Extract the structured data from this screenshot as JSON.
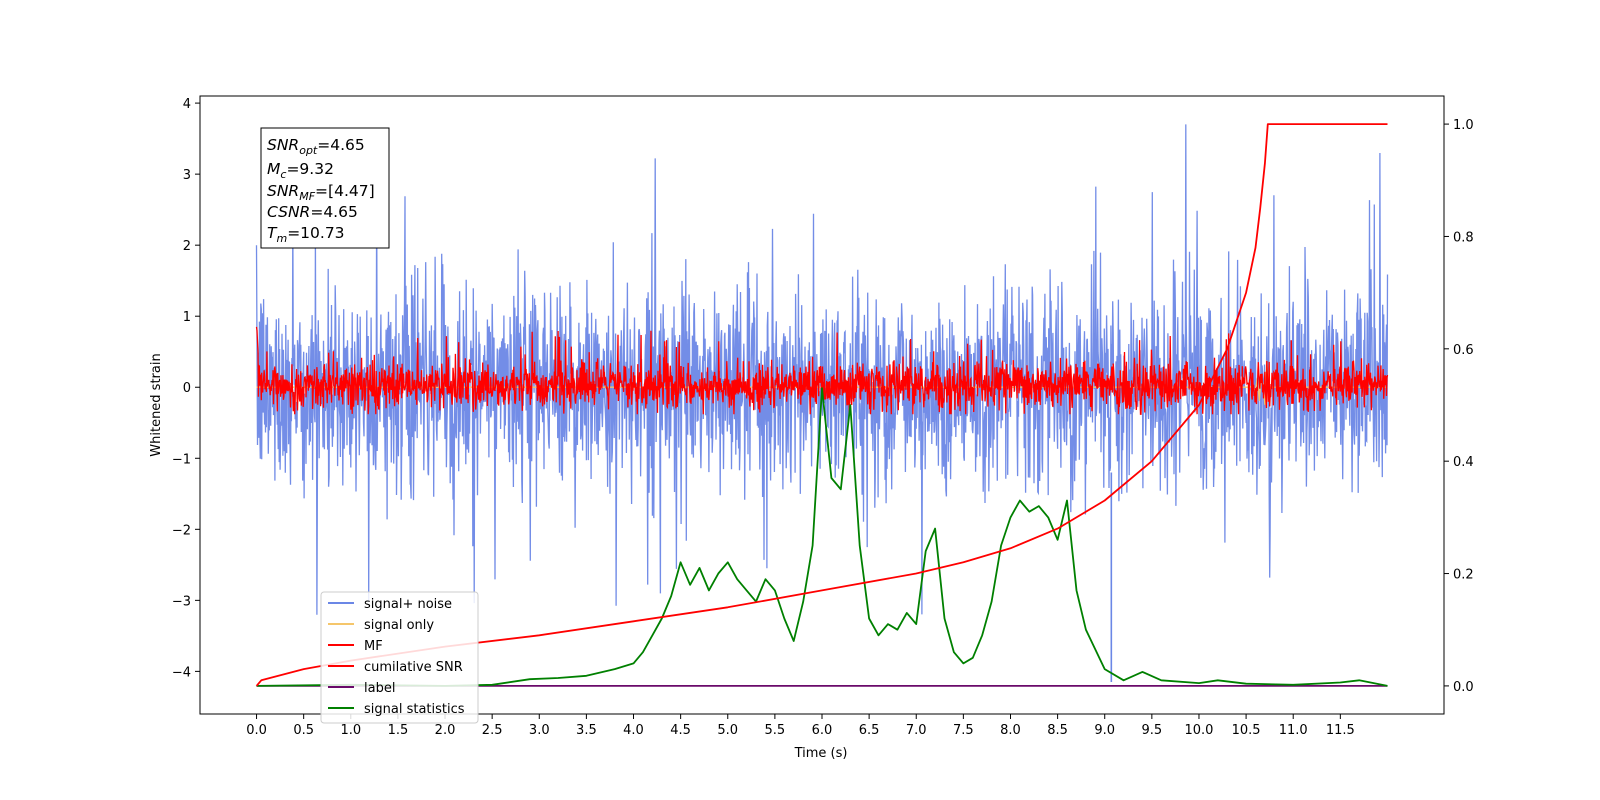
{
  "chart_data": {
    "type": "line",
    "xlabel": "Time (s)",
    "ylabel": "Whitened strain",
    "xlim": [
      -0.6,
      12.6
    ],
    "ylim": [
      -4.6,
      4.1
    ],
    "y2lim": [
      -0.05,
      1.05
    ],
    "x_ticks": [
      "0.0",
      "0.5",
      "1.0",
      "1.5",
      "2.0",
      "2.5",
      "3.0",
      "3.5",
      "4.0",
      "4.5",
      "5.0",
      "5.5",
      "6.0",
      "6.5",
      "7.0",
      "7.5",
      "8.0",
      "8.5",
      "9.0",
      "9.5",
      "10.0",
      "10.5",
      "11.0",
      "11.5"
    ],
    "y_ticks": [
      "4",
      "3",
      "2",
      "1",
      "0",
      "−1",
      "−2",
      "−3",
      "−4"
    ],
    "y2_ticks": [
      "0.0",
      "0.2",
      "0.4",
      "0.6",
      "0.8",
      "1.0"
    ],
    "grid": false,
    "legend_position": "lower-left",
    "annotation": {
      "snr_opt": {
        "base": "SNR",
        "sub": "opt",
        "value": "=4.65"
      },
      "mc": {
        "base": "M",
        "sub": "c",
        "value": "=9.32"
      },
      "snr_mf": {
        "base": "SNR",
        "sub": "MF",
        "value": "=[4.47]"
      },
      "csnr": {
        "base": "CSNR",
        "sub": "",
        "value": "=4.65"
      },
      "tm": {
        "base": "T",
        "sub": "m",
        "value": "=10.73"
      }
    },
    "series": [
      {
        "name": "signal+ noise",
        "color": "#6b87e6",
        "axis": "left",
        "description": "noise band roughly -1.6 to 1.6 with spikes up to 3.7 and down to -4.1, t from 0 to 12"
      },
      {
        "name": "signal only",
        "color": "#f5c66b",
        "axis": "left",
        "description": "near zero, small excursion near t=10.7"
      },
      {
        "name": "MF",
        "color": "#ff0000",
        "axis": "left",
        "description": "band roughly -0.4 to 0.5 with peaks near 0.8"
      },
      {
        "name": "cumilative SNR",
        "color": "#ff0000",
        "axis": "right",
        "x": [
          0.0,
          0.05,
          0.5,
          1.0,
          2.0,
          3.0,
          4.0,
          5.0,
          6.0,
          7.0,
          7.5,
          8.0,
          8.5,
          9.0,
          9.5,
          10.0,
          10.3,
          10.5,
          10.6,
          10.65,
          10.7,
          10.73,
          12.0
        ],
        "y": [
          0.0,
          0.01,
          0.03,
          0.045,
          0.07,
          0.09,
          0.115,
          0.14,
          0.17,
          0.2,
          0.22,
          0.245,
          0.28,
          0.33,
          0.4,
          0.5,
          0.6,
          0.7,
          0.78,
          0.85,
          0.93,
          1.0,
          1.0
        ]
      },
      {
        "name": "label",
        "color": "#6a0a6a",
        "axis": "right",
        "x": [
          0.0,
          12.0
        ],
        "y": [
          0.0,
          0.0
        ]
      },
      {
        "name": "signal statistics",
        "color": "#008000",
        "axis": "right",
        "x": [
          0.0,
          1.0,
          2.0,
          2.5,
          2.9,
          3.2,
          3.5,
          3.8,
          4.0,
          4.1,
          4.2,
          4.3,
          4.4,
          4.5,
          4.6,
          4.7,
          4.8,
          4.9,
          5.0,
          5.1,
          5.2,
          5.3,
          5.4,
          5.5,
          5.6,
          5.7,
          5.8,
          5.9,
          6.0,
          6.1,
          6.2,
          6.3,
          6.4,
          6.5,
          6.6,
          6.7,
          6.8,
          6.9,
          7.0,
          7.1,
          7.2,
          7.3,
          7.4,
          7.5,
          7.6,
          7.7,
          7.8,
          7.9,
          8.0,
          8.1,
          8.2,
          8.3,
          8.4,
          8.5,
          8.6,
          8.7,
          8.8,
          9.0,
          9.2,
          9.4,
          9.6,
          10.0,
          10.2,
          10.5,
          11.0,
          11.5,
          11.7,
          12.0
        ],
        "y": [
          0.0,
          0.002,
          0.0,
          0.002,
          0.012,
          0.014,
          0.018,
          0.03,
          0.04,
          0.06,
          0.09,
          0.12,
          0.16,
          0.22,
          0.18,
          0.21,
          0.17,
          0.2,
          0.22,
          0.19,
          0.17,
          0.15,
          0.19,
          0.17,
          0.12,
          0.08,
          0.15,
          0.25,
          0.53,
          0.37,
          0.35,
          0.5,
          0.25,
          0.12,
          0.09,
          0.11,
          0.1,
          0.13,
          0.11,
          0.24,
          0.28,
          0.12,
          0.06,
          0.04,
          0.05,
          0.09,
          0.15,
          0.25,
          0.3,
          0.33,
          0.31,
          0.32,
          0.3,
          0.26,
          0.33,
          0.17,
          0.1,
          0.03,
          0.01,
          0.025,
          0.01,
          0.005,
          0.01,
          0.004,
          0.002,
          0.006,
          0.01,
          0.0
        ]
      }
    ]
  }
}
